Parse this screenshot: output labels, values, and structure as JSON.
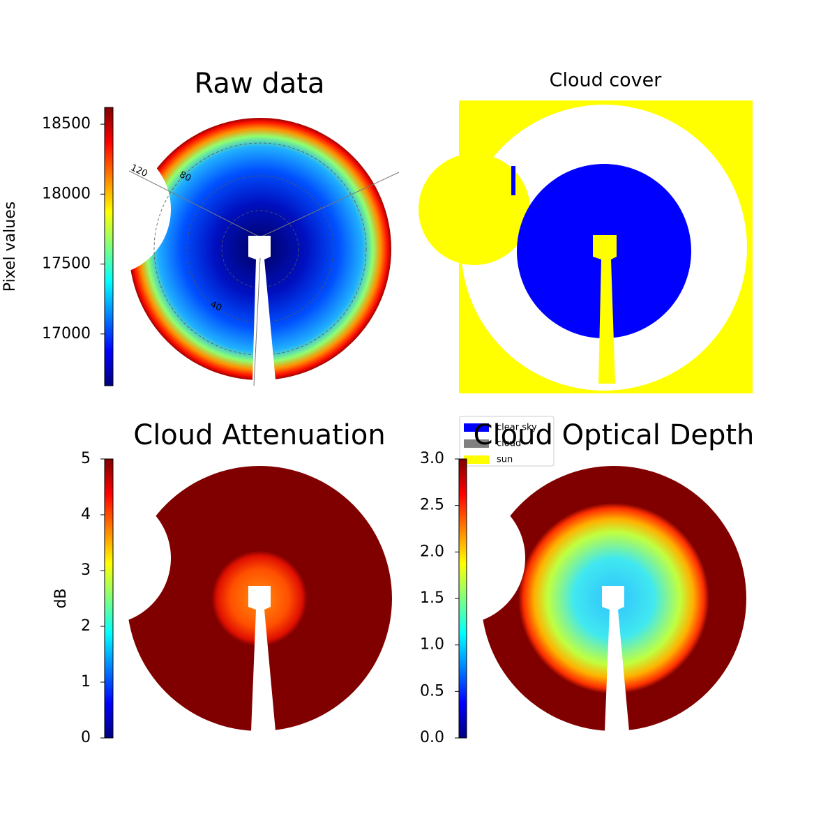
{
  "chart_data": [
    {
      "type": "image",
      "title": "Raw data",
      "colorbar": {
        "label": "Pixel values",
        "cmap": "jet",
        "lim": [
          16630,
          18620
        ],
        "ticks": [
          17000,
          17500,
          18000,
          18500
        ]
      },
      "polar_labels": [
        "120",
        "80",
        "40"
      ]
    },
    {
      "type": "image",
      "title": "Cloud cover",
      "legend": [
        {
          "name": "clear sky",
          "color": "#0000ff"
        },
        {
          "name": "cloud",
          "color": "#808080"
        },
        {
          "name": "sun",
          "color": "#ffff00"
        }
      ]
    },
    {
      "type": "image",
      "title": "Cloud Attenuation",
      "colorbar": {
        "label": "dB",
        "cmap": "jet",
        "lim": [
          0,
          5
        ],
        "ticks": [
          0,
          1,
          2,
          3,
          4,
          5
        ]
      }
    },
    {
      "type": "image",
      "title": "Cloud Optical Depth",
      "colorbar": {
        "cmap": "jet",
        "lim": [
          0,
          3
        ],
        "ticks": [
          {
            "value": 0,
            "label": "0.0"
          },
          {
            "value": 0.5,
            "label": "0.5"
          },
          {
            "value": 1,
            "label": "1.0"
          },
          {
            "value": 1.5,
            "label": "1.5"
          },
          {
            "value": 2,
            "label": "2.0"
          },
          {
            "value": 2.5,
            "label": "2.5"
          },
          {
            "value": 3,
            "label": "3.0"
          }
        ]
      }
    }
  ]
}
